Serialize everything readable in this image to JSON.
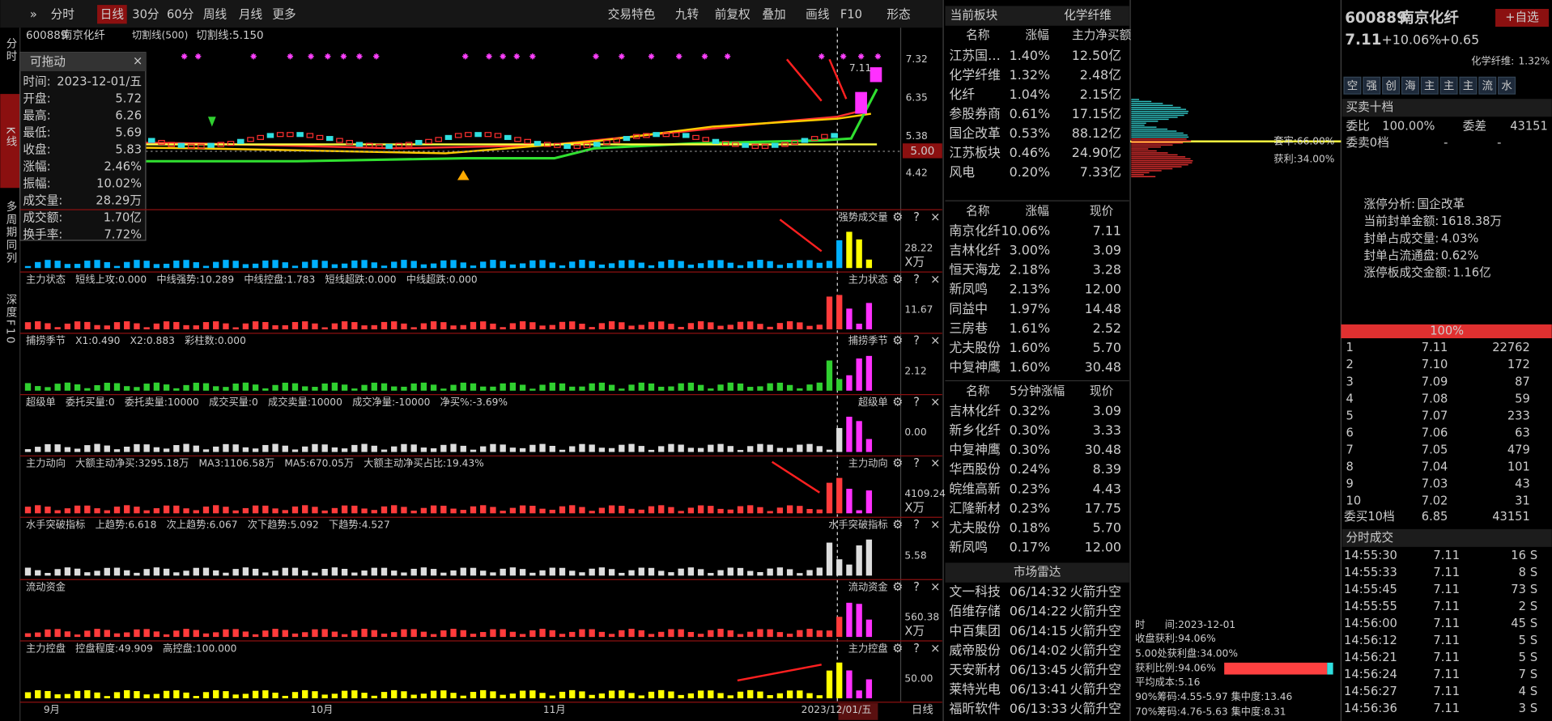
{
  "toolbar": {
    "left": [
      "分时",
      "日线",
      "30分",
      "60分",
      "周线",
      "月线",
      "更多"
    ],
    "right": [
      "交易特色",
      "九转",
      "前复权",
      "叠加",
      "画线",
      "F10",
      "形态"
    ]
  },
  "sidebar": [
    "分时",
    "K线",
    "多周期同列",
    "深度F10"
  ],
  "main_chart": {
    "code": "600889",
    "name": "南京化纤",
    "indicator": "切割线(500)",
    "cut_line": "切割线:5.150",
    "price_axis": [
      "7.32",
      "6.35",
      "5.38",
      "4.42"
    ],
    "price_tag": "5.00",
    "high_label": "7.11"
  },
  "info_box": {
    "title": "可拖动",
    "rows": [
      [
        "时间:",
        "2023-12-01/五"
      ],
      [
        "开盘:",
        "5.72"
      ],
      [
        "最高:",
        "6.26"
      ],
      [
        "最低:",
        "5.69"
      ],
      [
        "收盘:",
        "5.83"
      ],
      [
        "涨幅:",
        "2.46%"
      ],
      [
        "振幅:",
        "10.02%"
      ],
      [
        "成交量:",
        "28.29万"
      ],
      [
        "成交额:",
        "1.70亿"
      ],
      [
        "换手率:",
        "7.72%"
      ]
    ]
  },
  "panels": [
    {
      "right_title": "强势成交量",
      "axis": [
        "28.22",
        "X万"
      ]
    },
    {
      "title": "主力状态",
      "items": [
        {
          "text": "短线上攻:0.000",
          "color": "#ff30ff"
        },
        {
          "text": "中线强势:10.289",
          "color": "#ff3030"
        },
        {
          "text": "中线控盘:1.783",
          "color": "#ffff00"
        },
        {
          "text": "短线超跌:0.000",
          "color": "#3090ff"
        },
        {
          "text": "中线超跌:0.000",
          "color": "#00d000"
        }
      ],
      "right_title": "主力状态",
      "axis": [
        "11.67"
      ]
    },
    {
      "title": "捕捞季节",
      "items": [
        {
          "text": "X1:0.490",
          "color": "#ffff00"
        },
        {
          "text": "X2:0.883",
          "color": "#ff30ff"
        },
        {
          "text": "彩柱数:0.000",
          "color": "#00d000"
        }
      ],
      "right_title": "捕捞季节",
      "axis": [
        "2.12"
      ]
    },
    {
      "title": "超级单",
      "items": [
        {
          "text": "委托买量:0",
          "color": "#ffcc00"
        },
        {
          "text": "委托卖量:10000",
          "color": "#dddddd"
        },
        {
          "text": "成交买量:0",
          "color": "#ff3030"
        },
        {
          "text": "成交卖量:10000",
          "color": "#00d000"
        },
        {
          "text": "成交净量:-10000",
          "color": "#dddddd"
        },
        {
          "text": "净买%:-3.69%",
          "color": "#ff30ff"
        }
      ],
      "right_title": "超级单",
      "axis": [
        "0.00"
      ]
    },
    {
      "title": "主力动向",
      "items": [
        {
          "text": "大额主动净买:3295.18万",
          "color": "#ff3030"
        },
        {
          "text": "MA3:1106.58万",
          "color": "#ffff00"
        },
        {
          "text": "MA5:670.05万",
          "color": "#ff30ff"
        },
        {
          "text": "大额主动净买占比:19.43%",
          "color": "#ff3030"
        }
      ],
      "right_title": "主力动向",
      "axis": [
        "4109.24",
        "X万"
      ]
    },
    {
      "title": "水手突破指标",
      "items": [
        {
          "text": "上趋势:6.618",
          "color": "#ff30ff"
        },
        {
          "text": "次上趋势:6.067",
          "color": "#ffff00"
        },
        {
          "text": "次下趋势:5.092",
          "color": "#dddddd"
        },
        {
          "text": "下趋势:4.527",
          "color": "#00d000"
        }
      ],
      "right_title": "水手突破指标",
      "axis": [
        "5.58"
      ]
    },
    {
      "title": "流动资金",
      "right_title": "流动资金",
      "axis": [
        "560.38",
        "X万"
      ]
    },
    {
      "title": "主力控盘",
      "items": [
        {
          "text": "控盘程度:49.909",
          "color": "#ffff00"
        },
        {
          "text": "高控盘:100.000",
          "color": "#ff3030"
        }
      ],
      "right_title": "主力控盘",
      "axis": [
        "50.00"
      ]
    }
  ],
  "x_axis": {
    "labels": [
      "9月",
      "10月",
      "11月"
    ],
    "cursor_date": "2023/12/01/五",
    "period": "日线"
  },
  "sector": {
    "title": "当前板块",
    "sector": "化学纤维",
    "table1": {
      "headers": [
        "名称",
        "涨幅",
        "主力净买额"
      ],
      "rows": [
        [
          "江苏国…",
          "1.40%",
          "12.50亿"
        ],
        [
          "化学纤维",
          "1.32%",
          "2.48亿"
        ],
        [
          "化纤",
          "1.04%",
          "2.15亿"
        ],
        [
          "参股券商",
          "0.61%",
          "17.15亿"
        ],
        [
          "国企改革",
          "0.53%",
          "88.12亿"
        ],
        [
          "江苏板块",
          "0.46%",
          "24.90亿"
        ],
        [
          "风电",
          "0.20%",
          "7.33亿"
        ]
      ]
    },
    "table2": {
      "headers": [
        "名称",
        "涨幅",
        "现价"
      ],
      "rows": [
        [
          "南京化纤",
          "10.06%",
          "7.11"
        ],
        [
          "吉林化纤",
          "3.00%",
          "3.09"
        ],
        [
          "恒天海龙",
          "2.18%",
          "3.28"
        ],
        [
          "新凤鸣",
          "2.13%",
          "12.00"
        ],
        [
          "同益中",
          "1.97%",
          "14.48"
        ],
        [
          "三房巷",
          "1.61%",
          "2.52"
        ],
        [
          "尤夫股份",
          "1.60%",
          "5.70"
        ],
        [
          "中复神鹰",
          "1.60%",
          "30.48"
        ]
      ],
      "name_colors": [
        "#ff3030",
        "#ff3030",
        "#00b0ff",
        "#00b0ff",
        "#ff3030",
        "#ff3030",
        "#ff3030",
        "#ff3030"
      ]
    },
    "table3": {
      "headers": [
        "名称",
        "5分钟涨幅",
        "现价"
      ],
      "rows": [
        [
          "吉林化纤",
          "0.32%",
          "3.09"
        ],
        [
          "新乡化纤",
          "0.30%",
          "3.33"
        ],
        [
          "中复神鹰",
          "0.30%",
          "30.48"
        ],
        [
          "华西股份",
          "0.24%",
          "8.39"
        ],
        [
          "皖维高新",
          "0.23%",
          "4.43"
        ],
        [
          "汇隆新材",
          "0.23%",
          "17.75"
        ],
        [
          "尤夫股份",
          "0.18%",
          "5.70"
        ],
        [
          "新凤鸣",
          "0.17%",
          "12.00"
        ]
      ],
      "name_colors": [
        "#ff3030",
        "#ff3030",
        "#ff3030",
        "#00b0ff",
        "#ff3030",
        "#ff3030",
        "#ff3030",
        "#00b0ff"
      ]
    },
    "radar": {
      "title": "市场雷达",
      "rows": [
        [
          "文一科技",
          "06/14:32",
          "火箭升空"
        ],
        [
          "佰维存储",
          "06/14:22",
          "火箭升空"
        ],
        [
          "中百集团",
          "06/14:15",
          "火箭升空"
        ],
        [
          "威帝股份",
          "06/14:02",
          "火箭升空"
        ],
        [
          "天安新材",
          "06/13:45",
          "火箭升空"
        ],
        [
          "莱特光电",
          "06/13:41",
          "火箭升空"
        ],
        [
          "福昕软件",
          "06/13:33",
          "火箭升空"
        ]
      ],
      "name_colors": [
        "#00b0ff",
        "#ff3030",
        "#00b0ff",
        "#00b0ff",
        "#00b0ff",
        "#ff3030",
        "#ff3030"
      ]
    }
  },
  "chips": {
    "trapped": "套牢:66.00%",
    "profit": "获利:34.00%",
    "stats": [
      "时　　间:2023-12-01",
      "收盘获利:94.06%",
      "5.00处获利盘:34.00%",
      "获利比例:94.06%",
      "平均成本:5.16",
      "90%筹码:4.55-5.97  集中度:13.46",
      "70%筹码:4.76-5.63  集中度:8.31"
    ]
  },
  "quote": {
    "code": "600889",
    "name": "南京化纤",
    "price": "7.11",
    "change_pct": "+10.06%",
    "change": "+0.65",
    "watch": "+自选",
    "sector_label": "化学纤维:",
    "sector_change": "1.32%",
    "tabs": [
      "空",
      "强",
      "创",
      "海",
      "主",
      "主",
      "主",
      "流",
      "水"
    ],
    "book_title": "买卖十档",
    "ratio_label": "委比",
    "ratio": "100.00%",
    "diff_label": "委差",
    "diff": "43151",
    "ask_label": "委卖0档",
    "ask_price": "-",
    "ask_vol": "-",
    "limit_up": [
      [
        "涨停分析:",
        "国企改革"
      ],
      [
        "当前封单金额:",
        "1618.38万"
      ],
      [
        "封单占成交量:",
        "4.03%"
      ],
      [
        "封单占流通盘:",
        "0.62%"
      ],
      [
        "涨停板成交金额:",
        "1.16亿"
      ]
    ],
    "bar_label": "100%",
    "bids": [
      [
        "1",
        "7.11",
        "22762"
      ],
      [
        "2",
        "7.10",
        "172"
      ],
      [
        "3",
        "7.09",
        "87"
      ],
      [
        "4",
        "7.08",
        "59"
      ],
      [
        "5",
        "7.07",
        "233"
      ],
      [
        "6",
        "7.06",
        "63"
      ],
      [
        "7",
        "7.05",
        "479"
      ],
      [
        "8",
        "7.04",
        "101"
      ],
      [
        "9",
        "7.03",
        "43"
      ],
      [
        "10",
        "7.02",
        "31"
      ]
    ],
    "bid_label": "委买10档",
    "bid_price": "6.85",
    "bid_vol": "43151",
    "trades_title": "分时成交",
    "trades": [
      [
        "14:55:30",
        "7.11",
        "16",
        "S"
      ],
      [
        "14:55:33",
        "7.11",
        "8",
        "S"
      ],
      [
        "14:55:45",
        "7.11",
        "73",
        "S"
      ],
      [
        "14:55:55",
        "7.11",
        "2",
        "S"
      ],
      [
        "14:56:00",
        "7.11",
        "45",
        "S"
      ],
      [
        "14:56:12",
        "7.11",
        "5",
        "S"
      ],
      [
        "14:56:21",
        "7.11",
        "5",
        "S"
      ],
      [
        "14:56:24",
        "7.11",
        "7",
        "S"
      ],
      [
        "14:56:27",
        "7.11",
        "4",
        "S"
      ],
      [
        "14:56:36",
        "7.11",
        "3",
        "S"
      ]
    ]
  }
}
